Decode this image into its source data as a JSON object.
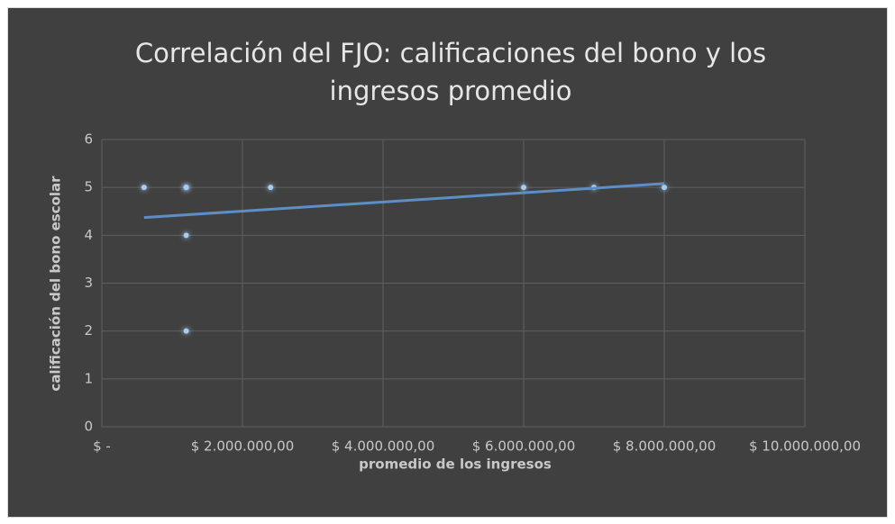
{
  "chart_data": {
    "type": "scatter",
    "title": "Correlación del FJO: calificaciones del bono y los ingresos promedio",
    "xlabel": "promedio de los ingresos",
    "ylabel": "calificación del bono escolar",
    "series": [
      {
        "name": "calificación del bono escolar",
        "color": "#a9cbf2",
        "x": [
          600000,
          1200000,
          1200000,
          1200000,
          1200000,
          2400000,
          6000000,
          7000000,
          8000000
        ],
        "values": [
          5,
          5,
          5,
          4,
          2,
          5,
          5,
          5,
          5
        ]
      }
    ],
    "trendline": {
      "color": "#5b8fc6",
      "x": [
        600000,
        8000000
      ],
      "values": [
        4.37,
        5.08
      ]
    },
    "xlim": [
      0,
      10000000
    ],
    "xticks": [
      {
        "value": 0,
        "label": "$ -"
      },
      {
        "value": 2000000,
        "label": "$ 2.000.000,00"
      },
      {
        "value": 4000000,
        "label": "$ 4.000.000,00"
      },
      {
        "value": 6000000,
        "label": "$ 6.000.000,00"
      },
      {
        "value": 8000000,
        "label": "$ 8.000.000,00"
      },
      {
        "value": 10000000,
        "label": "$ 10.000.000,00"
      }
    ],
    "ylim": [
      0,
      6
    ],
    "yticks": [
      0,
      1,
      2,
      3,
      4,
      5,
      6
    ],
    "grid": true
  }
}
